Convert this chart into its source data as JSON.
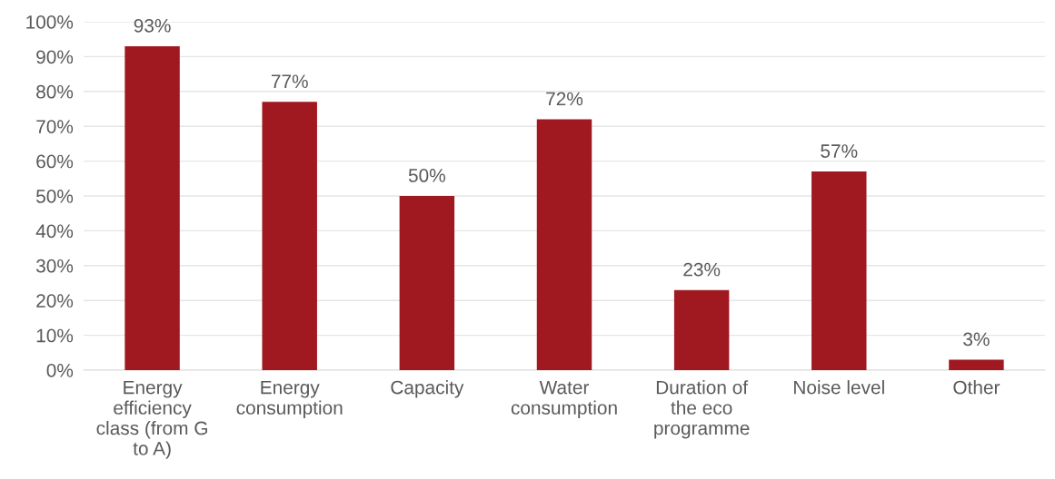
{
  "chart_data": {
    "type": "bar",
    "categories": [
      "Energy efficiency class (from G to A)",
      "Energy consumption",
      "Capacity",
      "Water consumption",
      "Duration of the eco programme",
      "Noise level",
      "Other"
    ],
    "values": [
      93,
      77,
      50,
      72,
      23,
      57,
      3
    ],
    "value_labels": [
      "93%",
      "77%",
      "50%",
      "72%",
      "23%",
      "57%",
      "3%"
    ],
    "color": "#a11920",
    "ylim": [
      0,
      100
    ],
    "yticks": [
      {
        "value": 0,
        "label": "0%"
      },
      {
        "value": 10,
        "label": "10%"
      },
      {
        "value": 20,
        "label": "20%"
      },
      {
        "value": 30,
        "label": "30%"
      },
      {
        "value": 40,
        "label": "40%"
      },
      {
        "value": 50,
        "label": "50%"
      },
      {
        "value": 60,
        "label": "60%"
      },
      {
        "value": 70,
        "label": "70%"
      },
      {
        "value": 80,
        "label": "80%"
      },
      {
        "value": 90,
        "label": "90%"
      },
      {
        "value": 100,
        "label": "100%"
      }
    ],
    "grid": "y"
  }
}
